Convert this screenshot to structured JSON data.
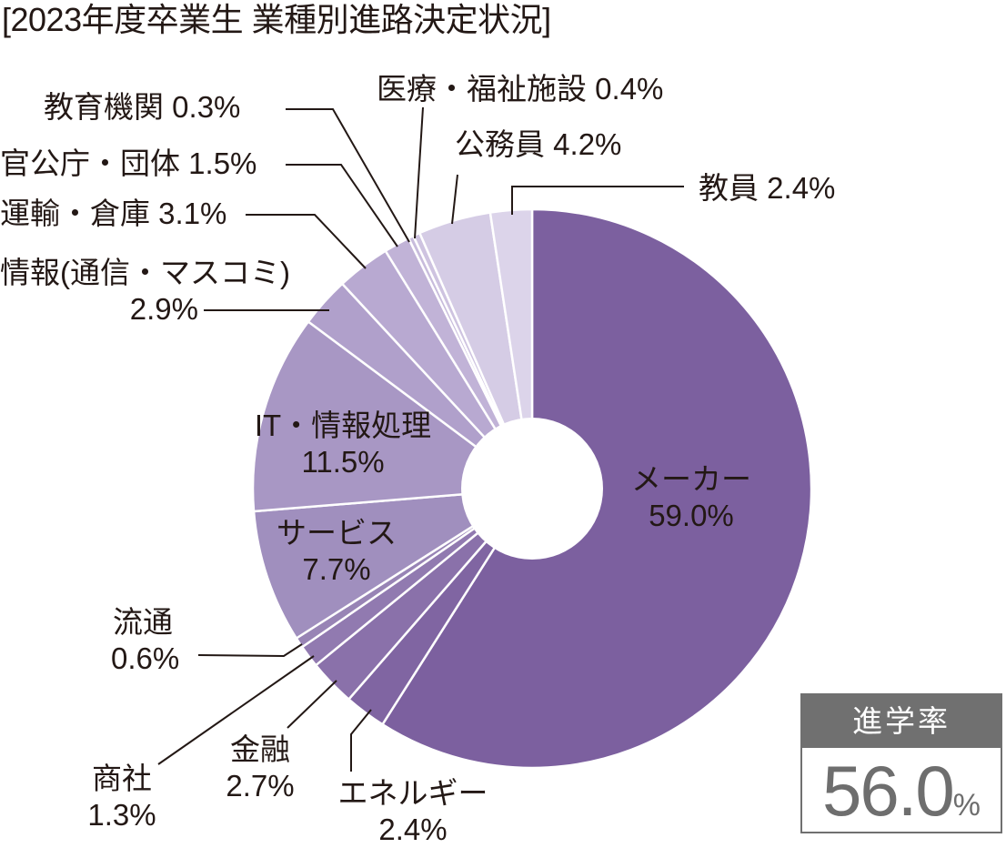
{
  "title": "[2023年度卒業生 業種別進路決定状況]",
  "rate_box": {
    "label": "進学率",
    "value": "56.0",
    "unit": "%",
    "header_color": "#707070",
    "value_color": "#6e6e6e"
  },
  "chart_data": {
    "type": "pie",
    "subtype": "donut",
    "title": "[2023年度卒業生 業種別進路決定状況]",
    "start_angle_deg": 0,
    "direction": "clockwise",
    "unit": "%",
    "slices": [
      {
        "label": "メーカー",
        "value": 59.0,
        "display": "59.0%",
        "color": "#7c609f"
      },
      {
        "label": "エネルギー",
        "value": 2.4,
        "display": "2.4%",
        "color": "#8065a2"
      },
      {
        "label": "金融",
        "value": 2.7,
        "display": "2.7%",
        "color": "#8a71aa"
      },
      {
        "label": "商社",
        "value": 1.3,
        "display": "1.3%",
        "color": "#917ab0"
      },
      {
        "label": "流通",
        "value": 0.6,
        "display": "0.6%",
        "color": "#9884b5"
      },
      {
        "label": "サービス",
        "value": 7.7,
        "display": "7.7%",
        "color": "#a08fbe"
      },
      {
        "label": "IT・情報処理",
        "value": 11.5,
        "display": "11.5%",
        "color": "#a897c4"
      },
      {
        "label": "情報(通信・マスコミ)",
        "value": 2.9,
        "display": "2.9%",
        "color": "#b0a0cb"
      },
      {
        "label": "運輸・倉庫",
        "value": 3.1,
        "display": "3.1%",
        "color": "#b8a9d1"
      },
      {
        "label": "官公庁・団体",
        "value": 1.5,
        "display": "1.5%",
        "color": "#c1b3d7"
      },
      {
        "label": "教育機関",
        "value": 0.3,
        "display": "0.3%",
        "color": "#c8bcdc"
      },
      {
        "label": "医療・福祉施設",
        "value": 0.4,
        "display": "0.4%",
        "color": "#cec3e0"
      },
      {
        "label": "公務員",
        "value": 4.2,
        "display": "4.2%",
        "color": "#d5cce5"
      },
      {
        "label": "教員",
        "value": 2.4,
        "display": "2.4%",
        "color": "#dcd4ea"
      }
    ],
    "legend": "none (callout labels)",
    "annotations": [
      "進学率 56.0%"
    ]
  },
  "labels": {
    "maker": {
      "name": "メーカー",
      "pct": "59.0%"
    },
    "energy": {
      "name": "エネルギー",
      "pct": "2.4%"
    },
    "finance": {
      "name": "金融",
      "pct": "2.7%"
    },
    "trading": {
      "name": "商社",
      "pct": "1.3%"
    },
    "retail": {
      "name": "流通",
      "pct": "0.6%"
    },
    "service": {
      "name": "サービス",
      "pct": "7.7%"
    },
    "it": {
      "name": "IT・情報処理",
      "pct": "11.5%"
    },
    "media": {
      "name": "情報(通信・マスコミ)",
      "pct": "2.9%"
    },
    "transport": {
      "full": "運輸・倉庫 3.1%"
    },
    "govorg": {
      "full": "官公庁・団体 1.5%"
    },
    "eduinst": {
      "full": "教育機関 0.3%"
    },
    "medical": {
      "full": "医療・福祉施設 0.4%"
    },
    "civil": {
      "full": "公務員 4.2%"
    },
    "teacher": {
      "full": "教員 2.4%"
    }
  }
}
